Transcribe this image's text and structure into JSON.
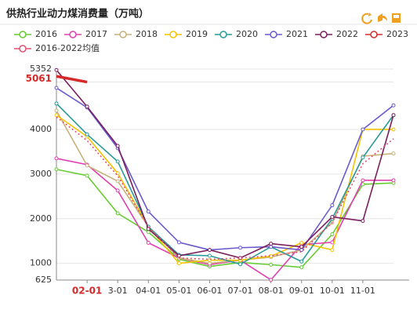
{
  "chart_data": {
    "type": "line",
    "title": "供热行业动力煤消费量（万吨）",
    "categories": [
      null,
      "02-01",
      "3-01",
      "04-01",
      "05-01",
      "06-01",
      "07-01",
      "08-01",
      "09-01",
      "10-01",
      "11-01",
      null
    ],
    "ylim": [
      625,
      5352
    ],
    "yticks": [
      625,
      1000,
      2000,
      3000,
      4000,
      5061,
      5352
    ],
    "grid": true,
    "series": [
      {
        "name": "2016",
        "color": "#66cc33",
        "values": [
          3105,
          2965,
          2120,
          1700,
          1090,
          930,
          1020,
          970,
          910,
          1650,
          2770,
          2800
        ]
      },
      {
        "name": "2017",
        "color": "#e040b0",
        "values": [
          3350,
          3210,
          2630,
          1460,
          1120,
          970,
          1070,
          630,
          1420,
          1470,
          2860,
          2860
        ]
      },
      {
        "name": "2018",
        "color": "#c8b07a",
        "values": [
          4420,
          3190,
          2840,
          1820,
          1120,
          1000,
          1070,
          1140,
          1300,
          1910,
          3400,
          3460
        ]
      },
      {
        "name": "2019",
        "color": "#f5c400",
        "values": [
          4320,
          3840,
          3020,
          1820,
          1000,
          1070,
          1070,
          1160,
          1460,
          1300,
          4000,
          4000
        ]
      },
      {
        "name": "2020",
        "color": "#2a9a9a",
        "values": [
          4580,
          3890,
          3280,
          1820,
          1190,
          1170,
          980,
          1370,
          1040,
          2000,
          3370,
          4320
        ]
      },
      {
        "name": "2021",
        "color": "#6a5acd",
        "values": [
          4930,
          4490,
          3580,
          2160,
          1470,
          1300,
          1350,
          1370,
          1300,
          2300,
          4000,
          4540
        ]
      },
      {
        "name": "2022",
        "color": "#7b1f5e",
        "values": [
          5330,
          4510,
          3630,
          1770,
          1170,
          1300,
          1120,
          1440,
          1370,
          2040,
          1950,
          4320
        ]
      },
      {
        "name": "2023",
        "color": "#d62a2a",
        "values": [
          5190,
          5061,
          null,
          null,
          null,
          null,
          null,
          null,
          null,
          null,
          null,
          null
        ]
      },
      {
        "name": "2016-2022均值",
        "color": "#e05070",
        "dashed": true,
        "values": [
          4280,
          3750,
          2960,
          1820,
          1120,
          1090,
          1120,
          1170,
          1260,
          1910,
          3230,
          3790
        ]
      }
    ]
  }
}
